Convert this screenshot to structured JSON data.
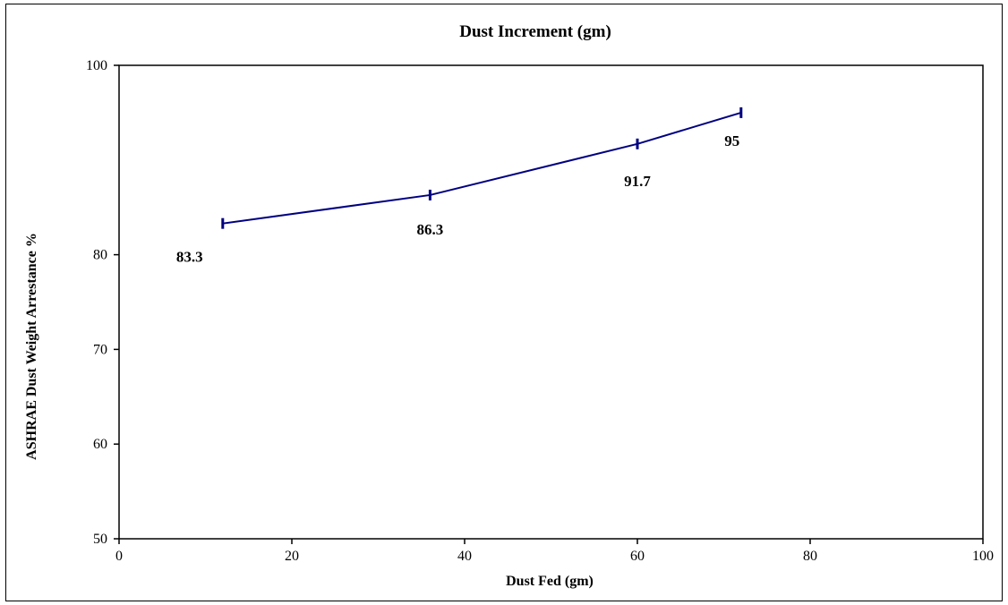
{
  "chart_data": {
    "type": "line",
    "title": "Dust Increment (gm)",
    "xlabel": "Dust Fed (gm)",
    "ylabel": "ASHRAE Dust Weight Arrestance %",
    "xlim": [
      0,
      100
    ],
    "ylim": [
      50,
      100
    ],
    "x_ticks": [
      "0",
      "20",
      "40",
      "60",
      "80",
      "100"
    ],
    "y_ticks": [
      "50",
      "60",
      "70",
      "80",
      "100"
    ],
    "y_tick_values": [
      50,
      60,
      70,
      80,
      100
    ],
    "grid": false,
    "legend": "none",
    "series": [
      {
        "x": [
          12,
          36,
          60,
          72
        ],
        "values": [
          83.3,
          86.3,
          91.7,
          95
        ],
        "labels": [
          "83.3",
          "86.3",
          "91.7",
          "95"
        ],
        "color": "#000080"
      }
    ]
  }
}
